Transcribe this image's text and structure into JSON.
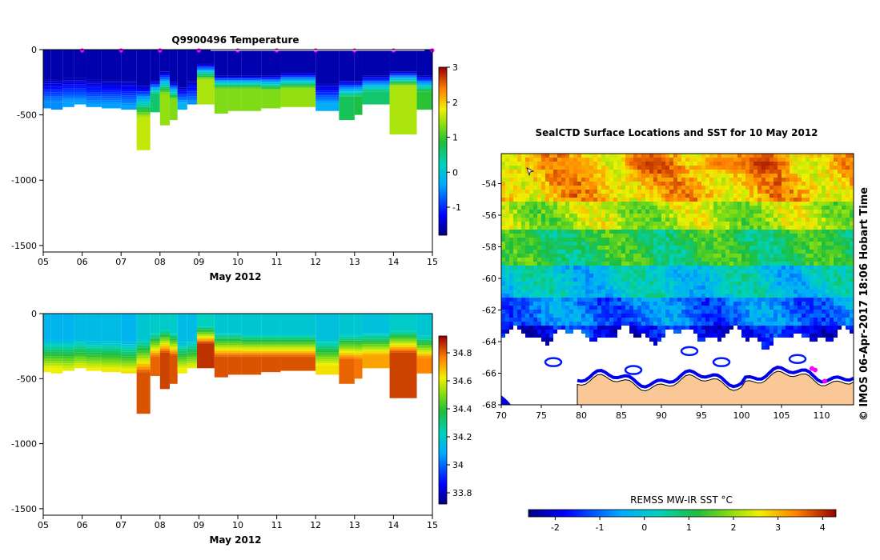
{
  "credit": "© IMOS 06-Apr-2017 18:06 Hobart Time",
  "chart_data": [
    {
      "type": "heatmap",
      "title": "Q9900496  Temperature",
      "xlabel": "May 2012",
      "x_ticks": [
        "05",
        "06",
        "07",
        "08",
        "09",
        "10",
        "11",
        "12",
        "13",
        "14",
        "15"
      ],
      "xlim": [
        5,
        15
      ],
      "y_ticks": [
        "0",
        "-500",
        "-1000",
        "-1500"
      ],
      "y_tick_values": [
        0,
        -500,
        -1000,
        -1500
      ],
      "ylim": [
        -1550,
        0
      ],
      "colorbar": {
        "ticks": [
          "3",
          "2",
          "1",
          "0",
          "-1"
        ],
        "values": [
          3,
          2,
          1,
          0,
          -1
        ],
        "range": [
          -1.8,
          3.0
        ]
      },
      "markers_x": [
        6,
        7,
        8,
        9,
        10,
        11,
        12,
        13,
        14,
        15
      ],
      "profiles": [
        {
          "x0": 5.0,
          "x1": 5.2,
          "depth": 450,
          "tc_top": 230,
          "tc_bot": 400,
          "surf_v": -1.6,
          "deep_v": -0.5
        },
        {
          "x0": 5.2,
          "x1": 5.5,
          "depth": 460,
          "tc_top": 230,
          "tc_bot": 400,
          "surf_v": -1.6,
          "deep_v": -0.5
        },
        {
          "x0": 5.5,
          "x1": 5.8,
          "depth": 440,
          "tc_top": 220,
          "tc_bot": 400,
          "surf_v": -1.6,
          "deep_v": -0.4
        },
        {
          "x0": 5.8,
          "x1": 6.1,
          "depth": 420,
          "tc_top": 220,
          "tc_bot": 400,
          "surf_v": -1.6,
          "deep_v": -0.4
        },
        {
          "x0": 6.1,
          "x1": 6.5,
          "depth": 440,
          "tc_top": 230,
          "tc_bot": 420,
          "surf_v": -1.6,
          "deep_v": -0.4
        },
        {
          "x0": 6.5,
          "x1": 7.0,
          "depth": 450,
          "tc_top": 240,
          "tc_bot": 420,
          "surf_v": -1.6,
          "deep_v": -0.4
        },
        {
          "x0": 7.0,
          "x1": 7.4,
          "depth": 460,
          "tc_top": 240,
          "tc_bot": 430,
          "surf_v": -1.6,
          "deep_v": -0.4
        },
        {
          "x0": 7.4,
          "x1": 7.75,
          "depth": 770,
          "tc_top": 280,
          "tc_bot": 520,
          "surf_v": -1.6,
          "deep_v": 1.6
        },
        {
          "x0": 7.75,
          "x1": 8.0,
          "depth": 480,
          "tc_top": 240,
          "tc_bot": 340,
          "surf_v": -1.6,
          "deep_v": 0.6
        },
        {
          "x0": 8.0,
          "x1": 8.25,
          "depth": 580,
          "tc_top": 170,
          "tc_bot": 340,
          "surf_v": -1.6,
          "deep_v": 1.4
        },
        {
          "x0": 8.25,
          "x1": 8.45,
          "depth": 540,
          "tc_top": 250,
          "tc_bot": 380,
          "surf_v": -1.6,
          "deep_v": 1.3
        },
        {
          "x0": 8.45,
          "x1": 8.7,
          "depth": 460,
          "tc_top": 290,
          "tc_bot": 420,
          "surf_v": -1.6,
          "deep_v": -0.2
        },
        {
          "x0": 8.7,
          "x1": 8.95,
          "depth": 420,
          "tc_top": 240,
          "tc_bot": 400,
          "surf_v": -1.6,
          "deep_v": -0.5
        },
        {
          "x0": 8.95,
          "x1": 9.4,
          "depth": 420,
          "tc_top": 110,
          "tc_bot": 230,
          "surf_v": -1.6,
          "deep_v": 1.5
        },
        {
          "x0": 9.4,
          "x1": 9.75,
          "depth": 490,
          "tc_top": 200,
          "tc_bot": 300,
          "surf_v": -1.6,
          "deep_v": 1.3
        },
        {
          "x0": 9.75,
          "x1": 10.1,
          "depth": 470,
          "tc_top": 200,
          "tc_bot": 300,
          "surf_v": -1.6,
          "deep_v": 1.3
        },
        {
          "x0": 10.1,
          "x1": 10.6,
          "depth": 470,
          "tc_top": 200,
          "tc_bot": 300,
          "surf_v": -1.6,
          "deep_v": 1.3
        },
        {
          "x0": 10.6,
          "x1": 11.1,
          "depth": 450,
          "tc_top": 200,
          "tc_bot": 310,
          "surf_v": -1.6,
          "deep_v": 1.3
        },
        {
          "x0": 11.1,
          "x1": 12.0,
          "depth": 440,
          "tc_top": 180,
          "tc_bot": 300,
          "surf_v": -1.6,
          "deep_v": 1.4
        },
        {
          "x0": 12.0,
          "x1": 12.6,
          "depth": 470,
          "tc_top": 260,
          "tc_bot": 420,
          "surf_v": -1.6,
          "deep_v": -0.3
        },
        {
          "x0": 12.6,
          "x1": 13.0,
          "depth": 540,
          "tc_top": 240,
          "tc_bot": 360,
          "surf_v": -1.6,
          "deep_v": 0.7
        },
        {
          "x0": 13.0,
          "x1": 13.2,
          "depth": 500,
          "tc_top": 240,
          "tc_bot": 360,
          "surf_v": -1.6,
          "deep_v": 0.8
        },
        {
          "x0": 13.2,
          "x1": 13.9,
          "depth": 420,
          "tc_top": 200,
          "tc_bot": 320,
          "surf_v": -1.6,
          "deep_v": 0.6
        },
        {
          "x0": 13.9,
          "x1": 14.6,
          "depth": 650,
          "tc_top": 170,
          "tc_bot": 280,
          "surf_v": -1.6,
          "deep_v": 1.5
        },
        {
          "x0": 14.6,
          "x1": 15.1,
          "depth": 460,
          "tc_top": 200,
          "tc_bot": 320,
          "surf_v": -1.6,
          "deep_v": 0.9
        }
      ]
    },
    {
      "type": "heatmap",
      "title": "",
      "xlabel": "May 2012",
      "x_ticks": [
        "05",
        "06",
        "07",
        "08",
        "09",
        "10",
        "11",
        "12",
        "13",
        "14",
        "15"
      ],
      "xlim": [
        5,
        15
      ],
      "y_ticks": [
        "0",
        "-500",
        "-1000",
        "-1500"
      ],
      "y_tick_values": [
        0,
        -500,
        -1000,
        -1500
      ],
      "ylim": [
        -1550,
        0
      ],
      "colorbar": {
        "ticks": [
          "34.8",
          "34.6",
          "34.4",
          "34.2",
          "34",
          "33.8"
        ],
        "values": [
          34.8,
          34.6,
          34.4,
          34.2,
          34.0,
          33.8
        ],
        "range": [
          33.72,
          34.92
        ]
      },
      "profiles": [
        {
          "x0": 5.0,
          "x1": 5.2,
          "depth": 450,
          "tc_top": 200,
          "tc_bot": 420,
          "surf_v": 34.12,
          "deep_v": 34.62
        },
        {
          "x0": 5.2,
          "x1": 5.5,
          "depth": 460,
          "tc_top": 200,
          "tc_bot": 420,
          "surf_v": 34.12,
          "deep_v": 34.62
        },
        {
          "x0": 5.5,
          "x1": 5.8,
          "depth": 440,
          "tc_top": 200,
          "tc_bot": 420,
          "surf_v": 34.12,
          "deep_v": 34.6
        },
        {
          "x0": 5.8,
          "x1": 6.1,
          "depth": 420,
          "tc_top": 200,
          "tc_bot": 400,
          "surf_v": 34.14,
          "deep_v": 34.6
        },
        {
          "x0": 6.1,
          "x1": 6.5,
          "depth": 440,
          "tc_top": 210,
          "tc_bot": 420,
          "surf_v": 34.14,
          "deep_v": 34.62
        },
        {
          "x0": 6.5,
          "x1": 7.0,
          "depth": 450,
          "tc_top": 210,
          "tc_bot": 430,
          "surf_v": 34.14,
          "deep_v": 34.63
        },
        {
          "x0": 7.0,
          "x1": 7.4,
          "depth": 460,
          "tc_top": 220,
          "tc_bot": 440,
          "surf_v": 34.12,
          "deep_v": 34.64
        },
        {
          "x0": 7.4,
          "x1": 7.75,
          "depth": 770,
          "tc_top": 200,
          "tc_bot": 450,
          "surf_v": 34.18,
          "deep_v": 34.82
        },
        {
          "x0": 7.75,
          "x1": 8.0,
          "depth": 480,
          "tc_top": 150,
          "tc_bot": 330,
          "surf_v": 34.2,
          "deep_v": 34.8
        },
        {
          "x0": 8.0,
          "x1": 8.25,
          "depth": 580,
          "tc_top": 120,
          "tc_bot": 300,
          "surf_v": 34.2,
          "deep_v": 34.84
        },
        {
          "x0": 8.25,
          "x1": 8.45,
          "depth": 540,
          "tc_top": 150,
          "tc_bot": 320,
          "surf_v": 34.2,
          "deep_v": 34.82
        },
        {
          "x0": 8.45,
          "x1": 8.7,
          "depth": 460,
          "tc_top": 220,
          "tc_bot": 420,
          "surf_v": 34.14,
          "deep_v": 34.62
        },
        {
          "x0": 8.7,
          "x1": 8.95,
          "depth": 420,
          "tc_top": 200,
          "tc_bot": 400,
          "surf_v": 34.14,
          "deep_v": 34.6
        },
        {
          "x0": 8.95,
          "x1": 9.4,
          "depth": 420,
          "tc_top": 100,
          "tc_bot": 230,
          "surf_v": 34.22,
          "deep_v": 34.86
        },
        {
          "x0": 9.4,
          "x1": 9.75,
          "depth": 490,
          "tc_top": 150,
          "tc_bot": 330,
          "surf_v": 34.18,
          "deep_v": 34.82
        },
        {
          "x0": 9.75,
          "x1": 10.1,
          "depth": 470,
          "tc_top": 150,
          "tc_bot": 330,
          "surf_v": 34.18,
          "deep_v": 34.82
        },
        {
          "x0": 10.1,
          "x1": 10.6,
          "depth": 470,
          "tc_top": 160,
          "tc_bot": 330,
          "surf_v": 34.18,
          "deep_v": 34.82
        },
        {
          "x0": 10.6,
          "x1": 11.1,
          "depth": 450,
          "tc_top": 160,
          "tc_bot": 330,
          "surf_v": 34.18,
          "deep_v": 34.82
        },
        {
          "x0": 11.1,
          "x1": 12.0,
          "depth": 440,
          "tc_top": 160,
          "tc_bot": 330,
          "surf_v": 34.18,
          "deep_v": 34.82
        },
        {
          "x0": 12.0,
          "x1": 12.6,
          "depth": 470,
          "tc_top": 200,
          "tc_bot": 400,
          "surf_v": 34.16,
          "deep_v": 34.64
        },
        {
          "x0": 12.6,
          "x1": 13.0,
          "depth": 540,
          "tc_top": 160,
          "tc_bot": 350,
          "surf_v": 34.18,
          "deep_v": 34.8
        },
        {
          "x0": 13.0,
          "x1": 13.2,
          "depth": 500,
          "tc_top": 160,
          "tc_bot": 350,
          "surf_v": 34.18,
          "deep_v": 34.78
        },
        {
          "x0": 13.2,
          "x1": 13.9,
          "depth": 420,
          "tc_top": 150,
          "tc_bot": 320,
          "surf_v": 34.16,
          "deep_v": 34.72
        },
        {
          "x0": 13.9,
          "x1": 14.6,
          "depth": 650,
          "tc_top": 130,
          "tc_bot": 300,
          "surf_v": 34.2,
          "deep_v": 34.84
        },
        {
          "x0": 14.6,
          "x1": 15.1,
          "depth": 460,
          "tc_top": 170,
          "tc_bot": 340,
          "surf_v": 34.18,
          "deep_v": 34.76
        }
      ]
    },
    {
      "type": "heatmap",
      "title": "SealCTD Surface Locations and SST for 10 May 2012",
      "x_ticks": [
        "70",
        "75",
        "80",
        "85",
        "90",
        "95",
        "100",
        "105",
        "110"
      ],
      "x_tick_values": [
        70,
        75,
        80,
        85,
        90,
        95,
        100,
        105,
        110
      ],
      "xlim": [
        70,
        114
      ],
      "y_ticks": [
        "-54",
        "-56",
        "-58",
        "-60",
        "-62",
        "-64",
        "-66",
        "-68"
      ],
      "y_tick_values": [
        -54,
        -56,
        -58,
        -60,
        -62,
        -64,
        -66,
        -68
      ],
      "ylim": [
        -68,
        -52.1
      ],
      "colorbar": {
        "title": "REMSS MW-IR SST °C",
        "ticks": [
          "-2",
          "-1",
          "0",
          "1",
          "2",
          "3",
          "4"
        ],
        "values": [
          -2,
          -1,
          0,
          1,
          2,
          3,
          4
        ],
        "range": [
          -2.6,
          4.3
        ]
      },
      "sst_bands": [
        {
          "lat_top": -52.1,
          "lat_bot": -55.2,
          "sst": 3.0
        },
        {
          "lat_top": -55.2,
          "lat_bot": -57.0,
          "sst": 2.1
        },
        {
          "lat_top": -57.0,
          "lat_bot": -59.3,
          "sst": 1.1
        },
        {
          "lat_top": -59.3,
          "lat_bot": -61.3,
          "sst": 0.0
        },
        {
          "lat_top": -61.3,
          "lat_bot": -62.9,
          "sst": -0.9
        },
        {
          "lat_top": -62.9,
          "lat_bot": -63.5,
          "sst": -1.7
        }
      ],
      "hotspots": [
        {
          "lon": 88.5,
          "lat": -52.8,
          "sst": 4.0
        },
        {
          "lon": 97.0,
          "lat": -52.7,
          "sst": 3.6
        },
        {
          "lon": 103.0,
          "lat": -52.8,
          "sst": 4.1
        },
        {
          "lon": 80.0,
          "lat": -53.0,
          "sst": 3.2
        }
      ],
      "seal_positions": [
        {
          "lon": 108.8,
          "lat": -65.7
        },
        {
          "lon": 110.4,
          "lat": -66.5
        },
        {
          "lon": 109.2,
          "lat": -65.8
        }
      ]
    }
  ]
}
